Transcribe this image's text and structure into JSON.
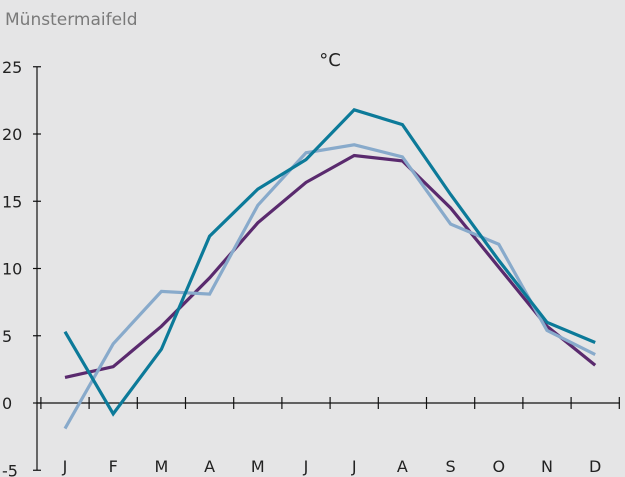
{
  "station": "Münstermaifeld",
  "chart_data": {
    "type": "line",
    "unit_label": "°C",
    "title": "",
    "xlabel": "",
    "ylabel": "",
    "categories": [
      "J",
      "F",
      "M",
      "A",
      "M",
      "J",
      "J",
      "A",
      "S",
      "O",
      "N",
      "D"
    ],
    "ylim": [
      -5,
      25
    ],
    "yticks": [
      -5,
      0,
      5,
      10,
      15,
      20,
      25
    ],
    "grid": false,
    "series": [
      {
        "color": "#5a2a6e",
        "values": [
          1.9,
          2.7,
          5.7,
          9.3,
          13.4,
          16.4,
          18.4,
          18.0,
          14.5,
          10.1,
          5.7,
          2.8
        ]
      },
      {
        "color": "#88aacb",
        "values": [
          -1.9,
          4.4,
          8.3,
          8.1,
          14.7,
          18.6,
          19.2,
          18.3,
          13.3,
          11.8,
          5.4,
          3.6
        ]
      },
      {
        "color": "#0c7a99",
        "values": [
          5.3,
          -0.8,
          4.0,
          12.4,
          15.9,
          18.1,
          21.8,
          20.7,
          15.5,
          10.6,
          6.0,
          4.5
        ]
      }
    ]
  }
}
